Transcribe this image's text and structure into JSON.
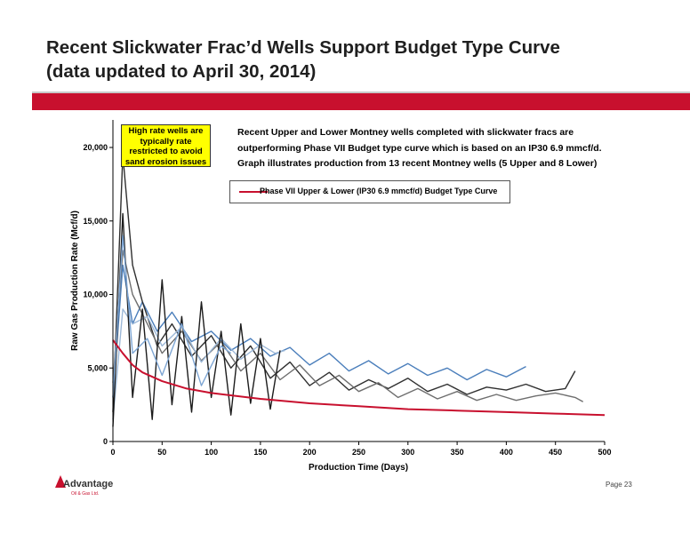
{
  "slide": {
    "title_line1": "Recent Slickwater Frac’d  Wells Support Budget Type Curve",
    "title_line2": "(data updated to April 30, 2014)",
    "page": "Page 23"
  },
  "callout": {
    "text": "High rate wells are typically rate restricted to avoid sand erosion issues",
    "bg": "#ffff00"
  },
  "notes": {
    "line1": "Recent Upper and Lower Montney wells completed with slickwater fracs are outperforming Phase VII Budget type curve which is based on an IP30 6.9 mmcf/d.",
    "line2": "Graph illustrates production from 13 recent Montney wells (5 Upper and 8 Lower)"
  },
  "logo": {
    "name": "Advantage",
    "sub": "Oil & Gas Ltd.",
    "icon": "flame-icon"
  },
  "colors": {
    "brand_red": "#c8102e",
    "type_curve": "#c8102e"
  },
  "chart_data": {
    "type": "line",
    "xlabel": "Production Time (Days)",
    "ylabel": "Raw Gas Production Rate (Mcf/d)",
    "xlim": [
      0,
      500
    ],
    "ylim": [
      0,
      20000
    ],
    "xticks": [
      0,
      50,
      100,
      150,
      200,
      250,
      300,
      350,
      400,
      450,
      500
    ],
    "yticks": [
      0,
      5000,
      10000,
      15000,
      20000
    ],
    "ytick_labels": [
      "0",
      "5,000",
      "10,000",
      "15,000",
      "20,000"
    ],
    "grid": false,
    "legend": "top-center",
    "series": [
      {
        "name": "Phase VII Upper & Lower (IP30 6.9 mmcf/d) Budget Type Curve",
        "color": "#c8102e",
        "width": 2,
        "x": [
          0,
          10,
          20,
          30,
          50,
          75,
          100,
          150,
          200,
          250,
          300,
          350,
          400,
          450,
          500
        ],
        "y": [
          6900,
          6000,
          5200,
          4700,
          4100,
          3600,
          3300,
          2900,
          2600,
          2400,
          2200,
          2100,
          2000,
          1900,
          1800
        ]
      },
      {
        "color": "#4a7ebb",
        "x": [
          0,
          10,
          20,
          30,
          45,
          60,
          80,
          100,
          120,
          140,
          160,
          180,
          200,
          220,
          240,
          260,
          280,
          300,
          320,
          340,
          360,
          380,
          400,
          420
        ],
        "y": [
          3000,
          12000,
          8000,
          9500,
          7500,
          8800,
          6800,
          7500,
          6200,
          7000,
          5800,
          6400,
          5200,
          6000,
          4800,
          5500,
          4600,
          5300,
          4500,
          5000,
          4200,
          4900,
          4400,
          5100
        ]
      },
      {
        "color": "#2f2f2f",
        "x": [
          0,
          10,
          20,
          30,
          45,
          60,
          80,
          100,
          120,
          140,
          160,
          180,
          200,
          220,
          240,
          260,
          280,
          300,
          320,
          340,
          360,
          380,
          400,
          420,
          440,
          460,
          470
        ],
        "y": [
          2000,
          19500,
          12000,
          9500,
          6500,
          8000,
          5800,
          7200,
          5000,
          6500,
          4300,
          5400,
          3800,
          4700,
          3500,
          4200,
          3600,
          4300,
          3400,
          3900,
          3200,
          3700,
          3500,
          3900,
          3400,
          3600,
          4800
        ]
      },
      {
        "color": "#6e6e6e",
        "x": [
          0,
          10,
          20,
          35,
          50,
          70,
          90,
          110,
          130,
          150,
          170,
          190,
          210,
          230,
          250,
          270,
          290,
          310,
          330,
          350,
          370,
          390,
          410,
          430,
          450,
          470,
          478
        ],
        "y": [
          4000,
          13000,
          10000,
          8000,
          6000,
          7500,
          5500,
          6800,
          4800,
          6000,
          4200,
          5200,
          3800,
          4500,
          3400,
          4000,
          3000,
          3600,
          2900,
          3400,
          2800,
          3200,
          2800,
          3100,
          3300,
          3000,
          2700
        ]
      },
      {
        "color": "#9cb8d8",
        "x": [
          0,
          10,
          20,
          35,
          50,
          70,
          90,
          110,
          130,
          150,
          165,
          175
        ],
        "y": [
          1500,
          9000,
          8000,
          8500,
          6500,
          7800,
          5400,
          7000,
          5600,
          6600,
          6000,
          6200
        ]
      },
      {
        "color": "#1c1c1c",
        "x": [
          0,
          10,
          20,
          30,
          40,
          50,
          60,
          70,
          80,
          90,
          100,
          110,
          120,
          130,
          140,
          150,
          160,
          170
        ],
        "y": [
          1000,
          15500,
          3000,
          9000,
          1500,
          11000,
          2500,
          8500,
          2000,
          9500,
          3000,
          7500,
          1800,
          8000,
          2600,
          7000,
          2200,
          6200
        ]
      },
      {
        "color": "#7ea6d4",
        "x": [
          0,
          10,
          20,
          35,
          50,
          70,
          90,
          110,
          120
        ],
        "y": [
          3000,
          14000,
          6000,
          7000,
          4500,
          8000,
          3800,
          6500,
          6000
        ]
      }
    ]
  }
}
